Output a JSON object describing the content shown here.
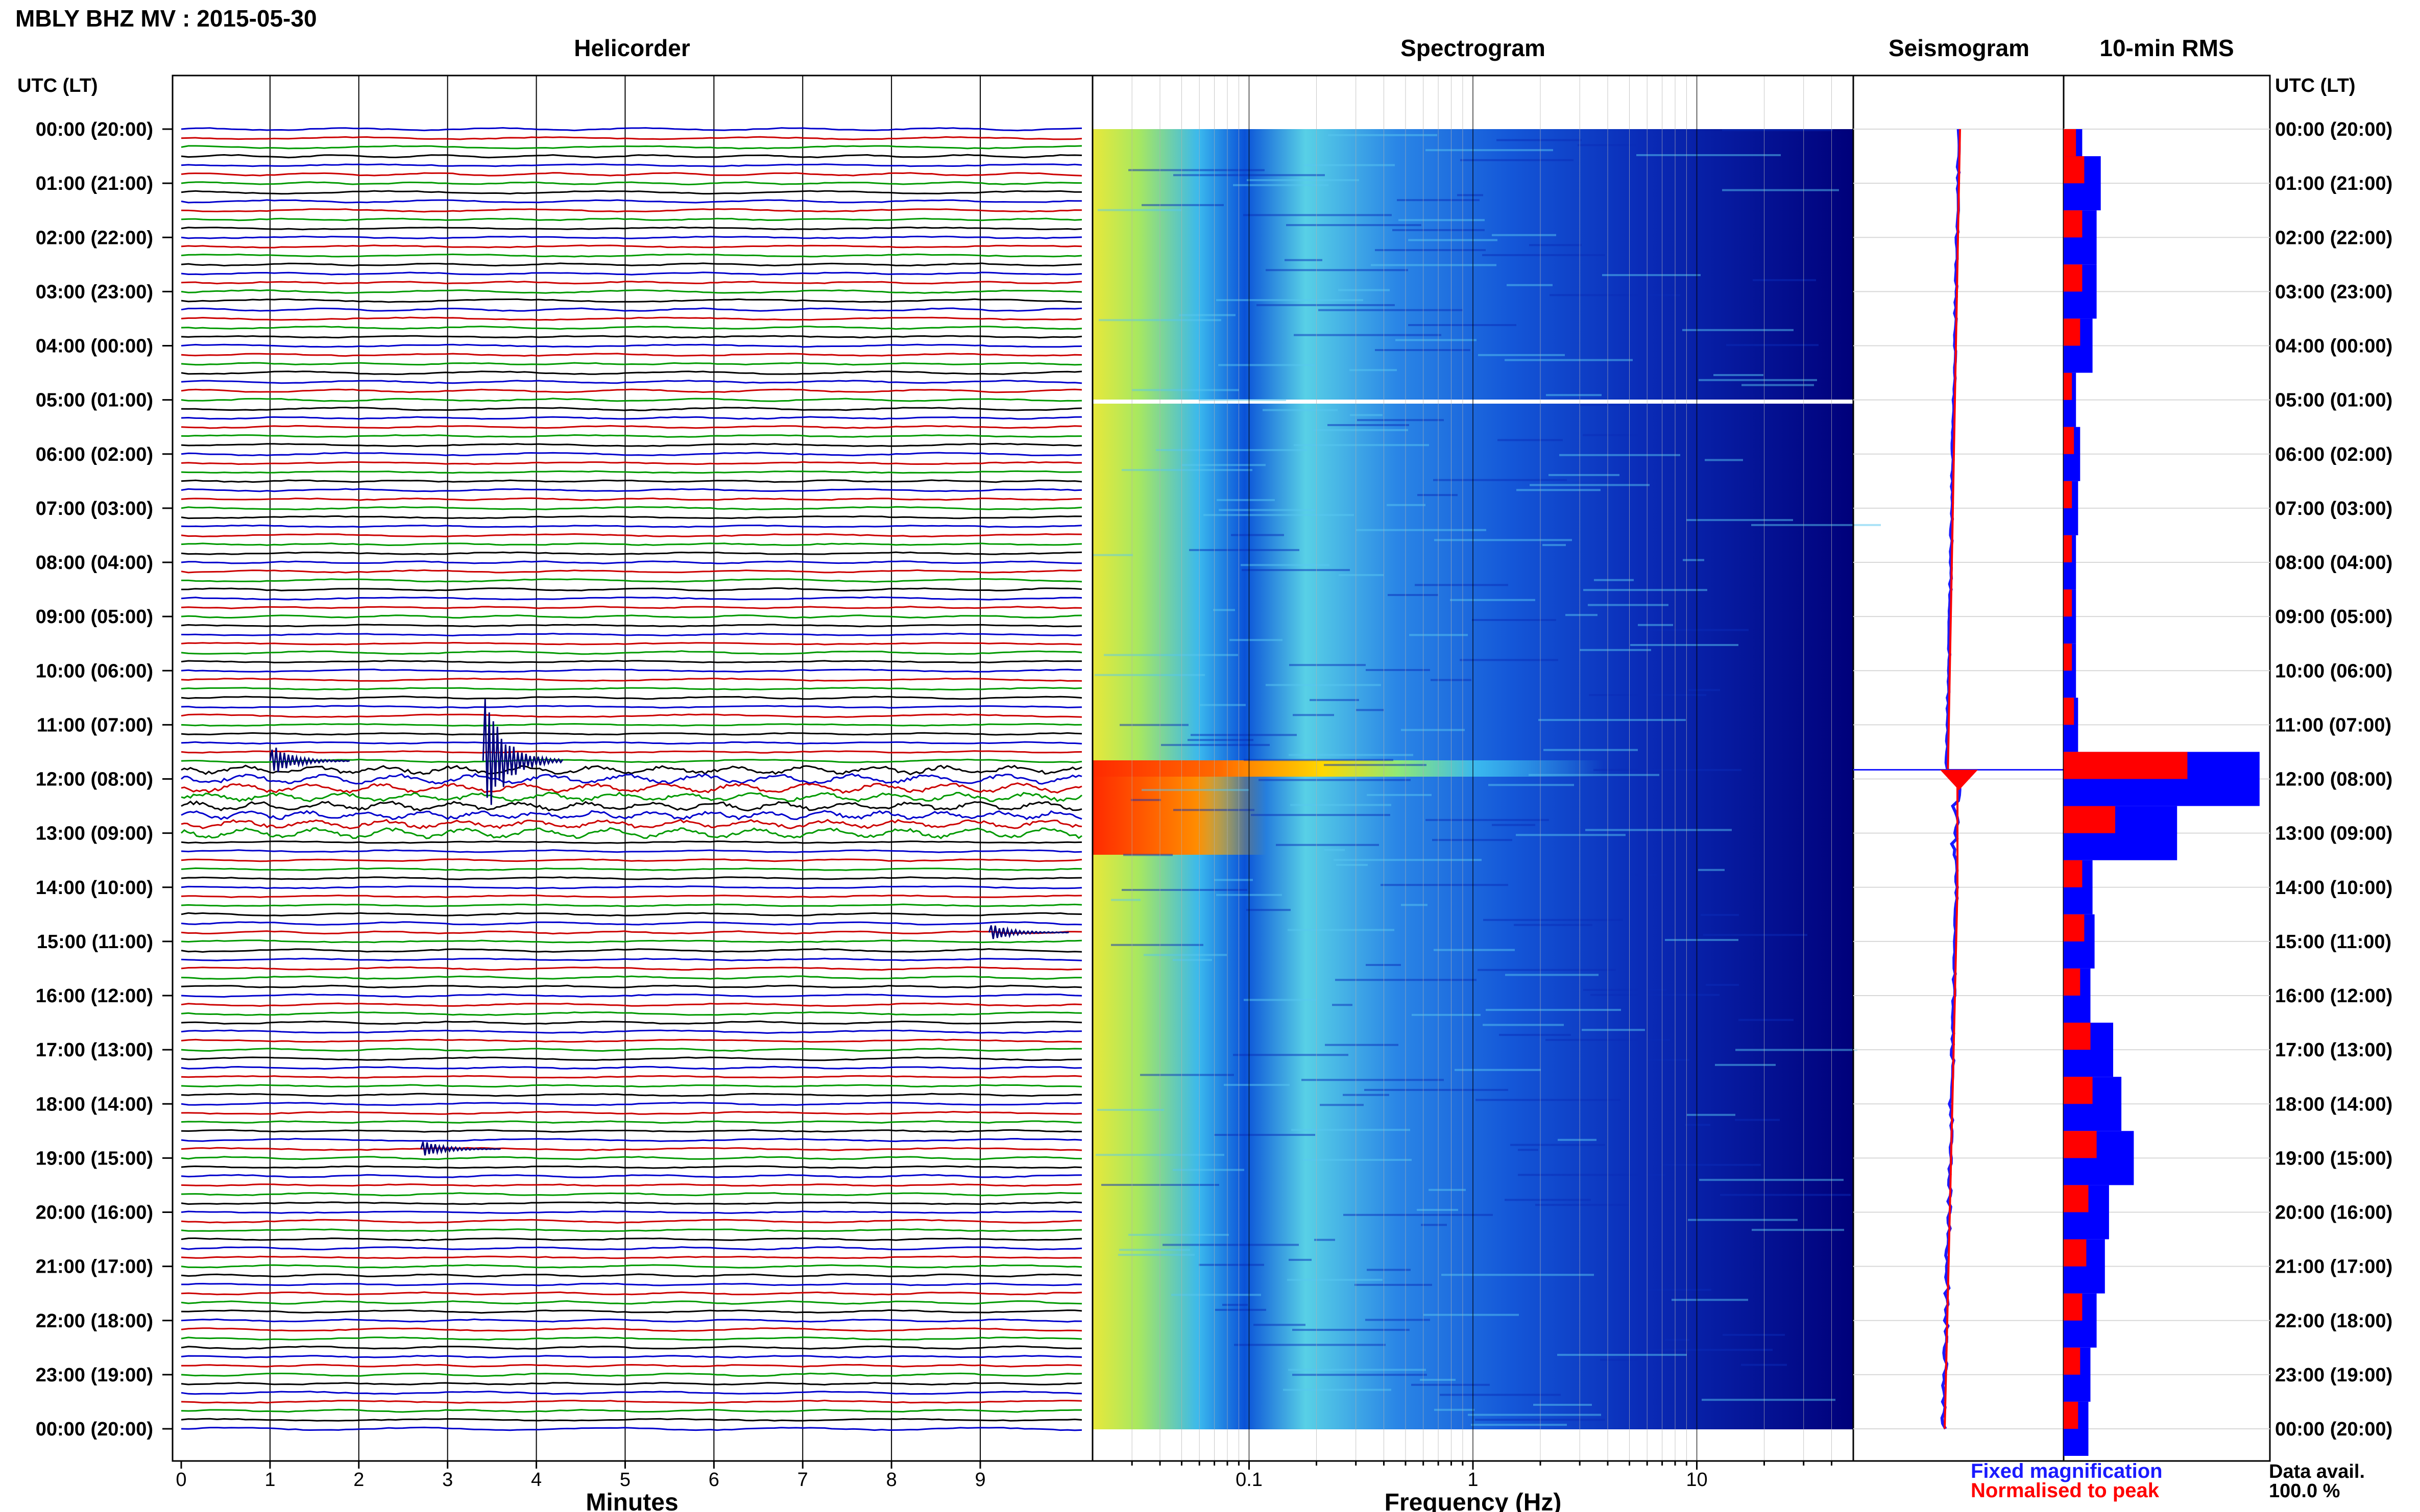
{
  "header": {
    "station_title": "MBLY BHZ MV : 2015-05-30",
    "utc_label_left": "UTC (LT)",
    "utc_label_right": "UTC (LT)"
  },
  "panels": {
    "helicorder_title": "Helicorder",
    "spectrogram_title": "Spectrogram",
    "seismogram_title": "Seismogram",
    "rms_title": "10-min RMS"
  },
  "time_labels": [
    "00:00 (20:00)",
    "01:00 (21:00)",
    "02:00 (22:00)",
    "03:00 (23:00)",
    "04:00 (00:00)",
    "05:00 (01:00)",
    "06:00 (02:00)",
    "07:00 (03:00)",
    "08:00 (04:00)",
    "09:00 (05:00)",
    "10:00 (06:00)",
    "11:00 (07:00)",
    "12:00 (08:00)",
    "13:00 (09:00)",
    "14:00 (10:00)",
    "15:00 (11:00)",
    "16:00 (12:00)",
    "17:00 (13:00)",
    "18:00 (14:00)",
    "19:00 (15:00)",
    "20:00 (16:00)",
    "21:00 (17:00)",
    "22:00 (18:00)",
    "23:00 (19:00)",
    "00:00 (20:00)"
  ],
  "helicorder_axis": {
    "xlabel": "Minutes",
    "ticks": [
      "0",
      "1",
      "2",
      "3",
      "4",
      "5",
      "6",
      "7",
      "8",
      "9"
    ]
  },
  "spectrogram_axis": {
    "xlabel": "Frequency (Hz)",
    "ticks": [
      "0.1",
      "1",
      "10"
    ]
  },
  "legend": {
    "fixed_label": "Fixed magnification",
    "normalised_label": "Normalised to peak",
    "fixed_color": "#0000ff",
    "normalised_color": "#ff0000"
  },
  "availability": {
    "label": "Data avail.",
    "value": "100.0 %"
  },
  "colors": {
    "trace_cycle": [
      "#0000cc",
      "#cc0000",
      "#009900",
      "#000000"
    ],
    "spectrogram_dark": "#00007a",
    "spectrogram_hot": "#ff2a00"
  },
  "chart_data": [
    {
      "type": "line",
      "title": "Helicorder",
      "xlabel": "Minutes",
      "ylabel": "UTC (LT)",
      "xlim": [
        0,
        10
      ],
      "rows_per_hour": 6,
      "row_count": 144,
      "events": [
        {
          "time": "11:40",
          "minute": 1.0,
          "peak_rel": 0.8
        },
        {
          "time": "11:40",
          "minute": 3.4,
          "peak_rel": 3.0
        },
        {
          "time": "14:50",
          "minute": 9.1,
          "peak_rel": 0.4
        },
        {
          "time": "18:50",
          "minute": 2.7,
          "peak_rel": 0.4
        }
      ]
    },
    {
      "type": "heatmap",
      "title": "Spectrogram",
      "xlabel": "Frequency (Hz)",
      "x_scale": "log",
      "xlim": [
        0.02,
        50
      ],
      "energy_burst": {
        "time": "11:50",
        "max_frequency_hz": 3
      },
      "data_gap": {
        "time": "05:00"
      }
    },
    {
      "type": "line",
      "title": "Seismogram",
      "series": [
        {
          "name": "Fixed magnification",
          "color": "#0000ff"
        },
        {
          "name": "Normalised to peak",
          "color": "#ff0000"
        }
      ]
    },
    {
      "type": "bar",
      "title": "10-min RMS",
      "orientation": "horizontal",
      "series": [
        {
          "name": "Fixed magnification",
          "color": "#0000ff",
          "hourly_values": [
            0.09,
            0.18,
            0.16,
            0.16,
            0.14,
            0.06,
            0.08,
            0.07,
            0.06,
            0.06,
            0.06,
            0.07,
            0.95,
            0.55,
            0.14,
            0.15,
            0.13,
            0.24,
            0.28,
            0.34,
            0.22,
            0.2,
            0.16,
            0.13,
            0.12
          ]
        },
        {
          "name": "Normalised to peak",
          "color": "#ff0000",
          "hourly_values": [
            0.06,
            0.1,
            0.09,
            0.09,
            0.08,
            0.04,
            0.05,
            0.04,
            0.04,
            0.04,
            0.04,
            0.05,
            0.6,
            0.25,
            0.09,
            0.1,
            0.08,
            0.13,
            0.14,
            0.16,
            0.12,
            0.11,
            0.09,
            0.08,
            0.07
          ]
        }
      ]
    }
  ]
}
